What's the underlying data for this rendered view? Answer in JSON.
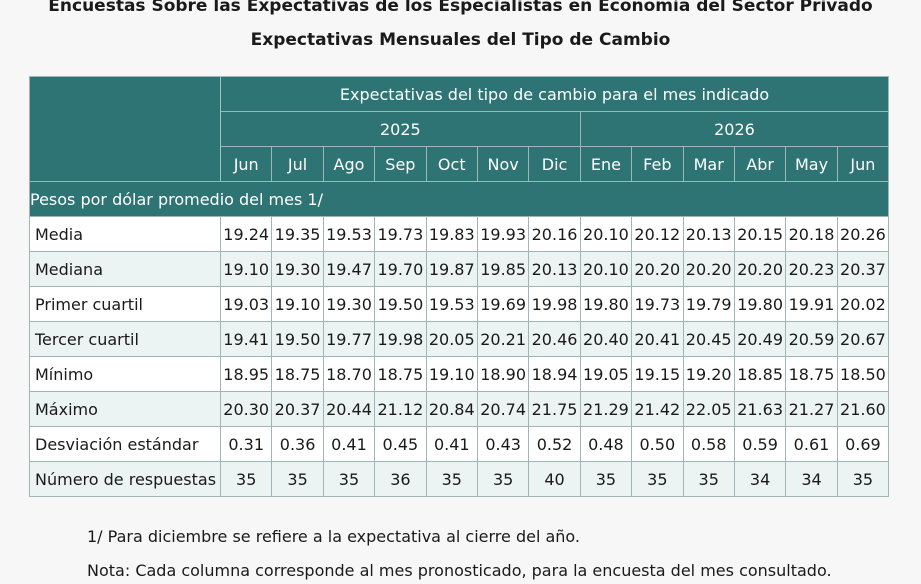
{
  "title_line1": "Encuestas Sobre las Expectativas de los Especialistas en Economía del Sector Privado",
  "title_line2": "Expectativas Mensuales del Tipo de Cambio",
  "header": {
    "group_label": "Expectativas del tipo de cambio para el mes indicado",
    "years": [
      "2025",
      "2026"
    ],
    "months": [
      "Jun",
      "Jul",
      "Ago",
      "Sep",
      "Oct",
      "Nov",
      "Dic",
      "Ene",
      "Feb",
      "Mar",
      "Abr",
      "May",
      "Jun"
    ]
  },
  "section_label": "Pesos por dólar promedio del mes 1/",
  "rows": [
    {
      "label": "Media",
      "values": [
        "19.24",
        "19.35",
        "19.53",
        "19.73",
        "19.83",
        "19.93",
        "20.16",
        "20.10",
        "20.12",
        "20.13",
        "20.15",
        "20.18",
        "20.26"
      ]
    },
    {
      "label": "Mediana",
      "values": [
        "19.10",
        "19.30",
        "19.47",
        "19.70",
        "19.87",
        "19.85",
        "20.13",
        "20.10",
        "20.20",
        "20.20",
        "20.20",
        "20.23",
        "20.37"
      ]
    },
    {
      "label": "Primer cuartil",
      "values": [
        "19.03",
        "19.10",
        "19.30",
        "19.50",
        "19.53",
        "19.69",
        "19.98",
        "19.80",
        "19.73",
        "19.79",
        "19.80",
        "19.91",
        "20.02"
      ]
    },
    {
      "label": "Tercer cuartil",
      "values": [
        "19.41",
        "19.50",
        "19.77",
        "19.98",
        "20.05",
        "20.21",
        "20.46",
        "20.40",
        "20.41",
        "20.45",
        "20.49",
        "20.59",
        "20.67"
      ]
    },
    {
      "label": "Mínimo",
      "values": [
        "18.95",
        "18.75",
        "18.70",
        "18.75",
        "19.10",
        "18.90",
        "18.94",
        "19.05",
        "19.15",
        "19.20",
        "18.85",
        "18.75",
        "18.50"
      ]
    },
    {
      "label": "Máximo",
      "values": [
        "20.30",
        "20.37",
        "20.44",
        "21.12",
        "20.84",
        "20.74",
        "21.75",
        "21.29",
        "21.42",
        "22.05",
        "21.63",
        "21.27",
        "21.60"
      ]
    },
    {
      "label": "Desviación estándar",
      "values": [
        "0.31",
        "0.36",
        "0.41",
        "0.45",
        "0.41",
        "0.43",
        "0.52",
        "0.48",
        "0.50",
        "0.58",
        "0.59",
        "0.61",
        "0.69"
      ]
    },
    {
      "label": "Número de respuestas",
      "values": [
        "35",
        "35",
        "35",
        "36",
        "35",
        "35",
        "40",
        "35",
        "35",
        "35",
        "34",
        "34",
        "35"
      ]
    }
  ],
  "notes": [
    "1/ Para diciembre se refiere a la expectativa al cierre del año.",
    "Nota: Cada columna corresponde al mes pronosticado, para la encuesta del mes consultado."
  ],
  "colors": {
    "header_bg": "#2e7474",
    "row_alt": "#ebf3f3"
  }
}
